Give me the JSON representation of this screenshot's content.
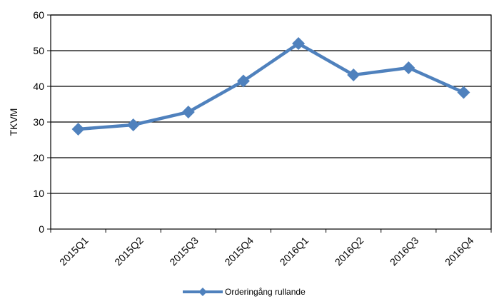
{
  "chart_data": {
    "type": "line",
    "title": "",
    "xlabel": "",
    "ylabel": "TKVM",
    "categories": [
      "2015Q1",
      "2015Q2",
      "2015Q3",
      "2015Q4",
      "2016Q1",
      "2016Q2",
      "2016Q3",
      "2016Q4"
    ],
    "series": [
      {
        "name": "Orderingång rullande",
        "values": [
          28,
          29.2,
          32.8,
          41.5,
          52,
          43.2,
          45.2,
          38.3
        ],
        "color": "#4F81BD"
      }
    ],
    "ylim": [
      0,
      60
    ],
    "yticks": [
      0,
      10,
      20,
      30,
      40,
      50,
      60
    ],
    "grid": true,
    "legend_position": "bottom"
  }
}
